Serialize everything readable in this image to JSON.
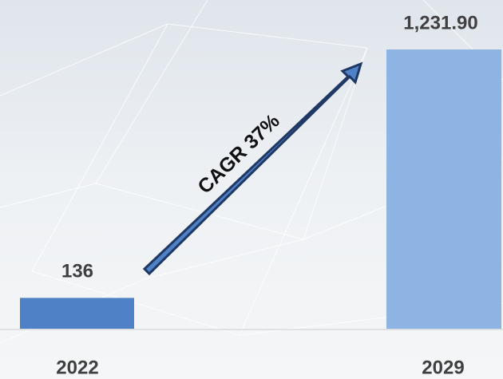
{
  "chart_data": {
    "type": "bar",
    "categories": [
      "2022",
      "2029"
    ],
    "values": [
      136,
      1231.9
    ],
    "value_labels": [
      "136",
      "1,231.90"
    ],
    "colors": [
      "#4f81c7",
      "#8eb4e3"
    ],
    "annotation": "CAGR 37%"
  }
}
